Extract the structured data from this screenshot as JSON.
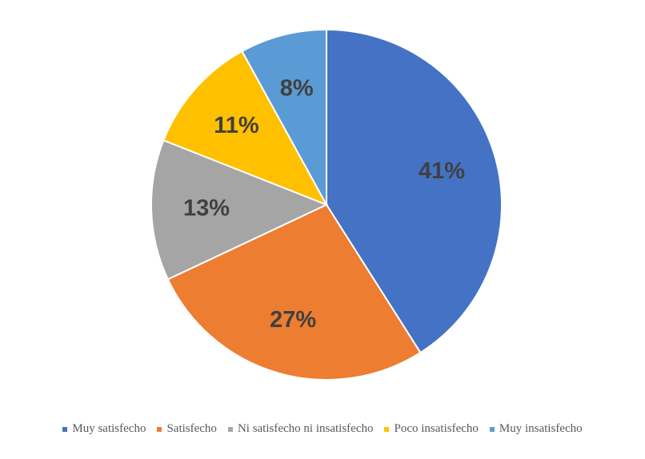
{
  "chart_data": {
    "type": "pie",
    "title": "",
    "categories": [
      "Muy satisfecho",
      "Satisfecho",
      "Ni satisfecho ni insatisfecho",
      "Poco insatisfecho",
      "Muy insatisfecho"
    ],
    "values": [
      41,
      27,
      13,
      11,
      8
    ],
    "data_labels": [
      "41%",
      "27%",
      "13%",
      "11%",
      "8%"
    ],
    "colors": [
      "#4472C4",
      "#ED7D31",
      "#A5A5A5",
      "#FFC000",
      "#5B9BD5"
    ],
    "start": "12 o'clock, clockwise",
    "legend_position": "bottom"
  },
  "legend": {
    "items": [
      {
        "label": "Muy satisfecho",
        "color": "#4472C4"
      },
      {
        "label": "Satisfecho",
        "color": "#ED7D31"
      },
      {
        "label": "Ni satisfecho ni insatisfecho",
        "color": "#A5A5A5"
      },
      {
        "label": "Poco insatisfecho",
        "color": "#FFC000"
      },
      {
        "label": "Muy insatisfecho",
        "color": "#5B9BD5"
      }
    ]
  }
}
